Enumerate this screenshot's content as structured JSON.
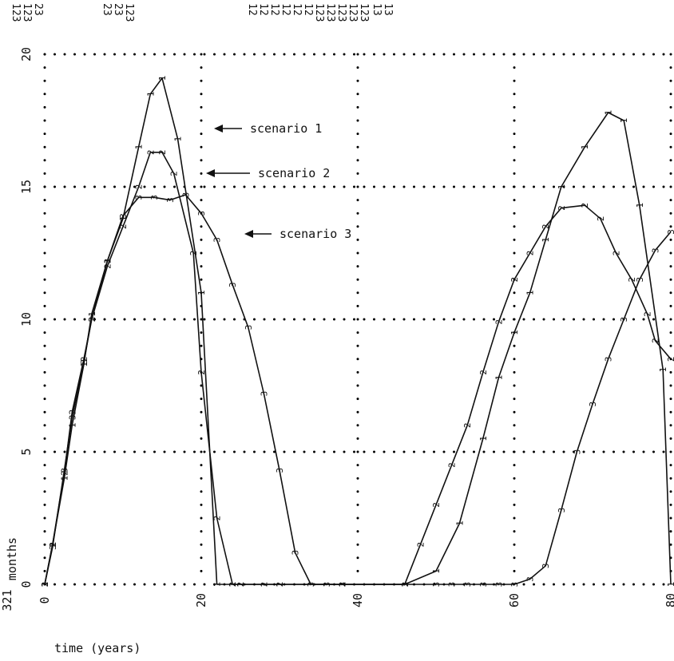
{
  "chart_data": {
    "type": "line",
    "xlabel": "time (years)",
    "ylabel": "months",
    "xlim": [
      0,
      80
    ],
    "ylim": [
      0,
      20
    ],
    "x_ticks": [
      "0",
      "20",
      "40",
      "60",
      "80"
    ],
    "y_ticks": [
      "0",
      "5",
      "10",
      "15",
      "20"
    ],
    "x_corner_label": "321",
    "grid": "dotted",
    "top_codes": [
      "123",
      "123",
      "23",
      "",
      "23",
      "23",
      "123",
      "12",
      "12",
      "12",
      "12",
      "12",
      "12",
      "123",
      "123",
      "123",
      "123",
      "123",
      "13",
      "13"
    ],
    "series": [
      {
        "name": "scenario 1",
        "marker": "1",
        "x": [
          0,
          1,
          2.5,
          3.5,
          5,
          6,
          8,
          10,
          12,
          13.5,
          15,
          17,
          20,
          22,
          24,
          25,
          28,
          30,
          38,
          46,
          50,
          53,
          56,
          58,
          60,
          62,
          64,
          66,
          69,
          72,
          74,
          76,
          79,
          80
        ],
        "y": [
          0,
          1.5,
          4,
          6,
          8.3,
          10.2,
          12.2,
          13.8,
          16.5,
          18.5,
          19.1,
          16.8,
          11,
          0,
          0,
          0,
          0,
          0,
          0,
          0,
          0.5,
          2.3,
          5.5,
          7.8,
          9.5,
          11,
          13,
          15,
          16.5,
          17.8,
          17.5,
          14.3,
          8.1,
          0
        ]
      },
      {
        "name": "scenario 2",
        "marker": "2",
        "x": [
          0,
          1,
          2.5,
          3.5,
          5,
          6,
          8,
          10,
          12,
          13.5,
          15,
          16.5,
          19,
          20,
          22,
          24,
          25,
          28,
          30,
          38,
          46,
          48,
          50,
          52,
          54,
          56,
          58,
          60,
          62,
          64,
          66,
          69,
          71,
          73,
          75,
          77,
          78,
          80
        ],
        "y": [
          0,
          1.5,
          4.2,
          6.5,
          8.5,
          10,
          12,
          13.5,
          15,
          16.3,
          16.3,
          15.5,
          12.5,
          8,
          2.5,
          0,
          0,
          0,
          0,
          0,
          0,
          1.5,
          3,
          4.5,
          6,
          8,
          9.9,
          11.5,
          12.5,
          13.5,
          14.2,
          14.3,
          13.8,
          12.5,
          11.5,
          10.2,
          9.2,
          8.5
        ]
      },
      {
        "name": "scenario 3",
        "marker": "3",
        "x": [
          0,
          1,
          2.5,
          3.5,
          5,
          6,
          8,
          10,
          12,
          14,
          16,
          18,
          20,
          22,
          24,
          26,
          28,
          30,
          32,
          34,
          36,
          38,
          46,
          50,
          52,
          54,
          56,
          58,
          60,
          62,
          64,
          66,
          68,
          70,
          72,
          74,
          76,
          78,
          80
        ],
        "y": [
          0,
          1.4,
          4.3,
          6.3,
          8.4,
          10,
          12.2,
          13.9,
          14.6,
          14.6,
          14.5,
          14.7,
          14,
          13,
          11.3,
          9.7,
          7.2,
          4.3,
          1.2,
          0,
          0,
          0,
          0,
          0,
          0,
          0,
          0,
          0,
          0,
          0.2,
          0.7,
          2.8,
          5,
          6.8,
          8.5,
          10,
          11.5,
          12.6,
          13.3
        ]
      }
    ],
    "annotations": [
      "scenario 1",
      "scenario 2",
      "scenario 3"
    ]
  }
}
